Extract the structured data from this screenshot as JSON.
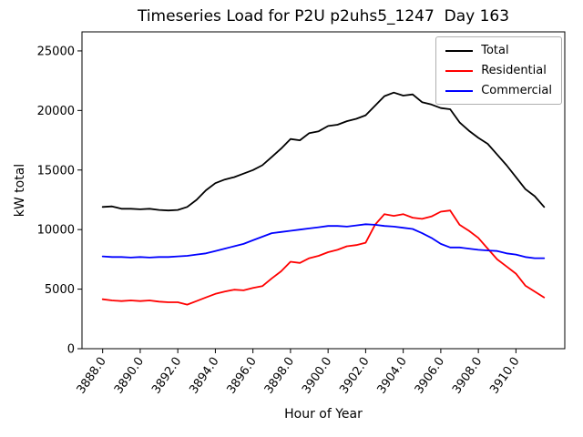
{
  "chart_data": {
    "type": "line",
    "title": "Timeseries Load for P2U p2uhs5_1247  Day 163",
    "xlabel": "Hour of Year",
    "ylabel": "kW total",
    "grid": false,
    "legend_position": "upper right",
    "xlim": [
      3886.9,
      3912.6
    ],
    "ylim": [
      0,
      26600
    ],
    "x_ticks": [
      3888,
      3890,
      3892,
      3894,
      3896,
      3898,
      3900,
      3902,
      3904,
      3906,
      3908,
      3910
    ],
    "x_tick_labels": [
      "3888.0",
      "3890.0",
      "3892.0",
      "3894.0",
      "3896.0",
      "3898.0",
      "3900.0",
      "3902.0",
      "3904.0",
      "3906.0",
      "3908.0",
      "3910.0"
    ],
    "y_ticks": [
      0,
      5000,
      10000,
      15000,
      20000,
      25000
    ],
    "y_tick_labels": [
      "0",
      "5000",
      "10000",
      "15000",
      "20000",
      "25000"
    ],
    "x": [
      3888.0,
      3888.5,
      3889.0,
      3889.5,
      3890.0,
      3890.5,
      3891.0,
      3891.5,
      3892.0,
      3892.5,
      3893.0,
      3893.5,
      3894.0,
      3894.5,
      3895.0,
      3895.5,
      3896.0,
      3896.5,
      3897.0,
      3897.5,
      3898.0,
      3898.5,
      3899.0,
      3899.5,
      3900.0,
      3900.5,
      3901.0,
      3901.5,
      3902.0,
      3902.5,
      3903.0,
      3903.5,
      3904.0,
      3904.5,
      3905.0,
      3905.5,
      3906.0,
      3906.5,
      3907.0,
      3907.5,
      3908.0,
      3908.5,
      3909.0,
      3909.5,
      3910.0,
      3910.5,
      3911.0,
      3911.5
    ],
    "series": [
      {
        "name": "Total",
        "color": "#000000",
        "values": [
          11900,
          11950,
          11750,
          11750,
          11700,
          11750,
          11650,
          11600,
          11650,
          11900,
          12500,
          13300,
          13900,
          14200,
          14400,
          14700,
          15000,
          15400,
          16100,
          16800,
          17600,
          17500,
          18100,
          18250,
          18700,
          18800,
          19100,
          19300,
          19600,
          20400,
          21200,
          21500,
          21250,
          21350,
          20700,
          20500,
          20200,
          20100,
          19000,
          18300,
          17700,
          17200,
          16300,
          15400,
          14400,
          13400,
          12800,
          11900
        ]
      },
      {
        "name": "Residential",
        "color": "#ff0000",
        "values": [
          4150,
          4050,
          4000,
          4050,
          4000,
          4050,
          3950,
          3900,
          3900,
          3700,
          4000,
          4300,
          4600,
          4800,
          4950,
          4900,
          5100,
          5250,
          5900,
          6500,
          7300,
          7200,
          7600,
          7800,
          8100,
          8300,
          8600,
          8700,
          8900,
          10400,
          11300,
          11150,
          11300,
          11000,
          10900,
          11100,
          11500,
          11600,
          10400,
          9900,
          9300,
          8400,
          7500,
          6900,
          6300,
          5300,
          4800,
          4300
        ]
      },
      {
        "name": "Commercial",
        "color": "#0000ff",
        "values": [
          7750,
          7700,
          7700,
          7650,
          7700,
          7650,
          7700,
          7700,
          7750,
          7800,
          7900,
          8000,
          8200,
          8400,
          8600,
          8800,
          9100,
          9400,
          9700,
          9800,
          9900,
          10000,
          10100,
          10200,
          10300,
          10300,
          10250,
          10350,
          10450,
          10400,
          10300,
          10250,
          10150,
          10050,
          9700,
          9300,
          8800,
          8500,
          8500,
          8400,
          8300,
          8250,
          8200,
          8000,
          7900,
          7700,
          7600,
          7600
        ]
      }
    ]
  }
}
